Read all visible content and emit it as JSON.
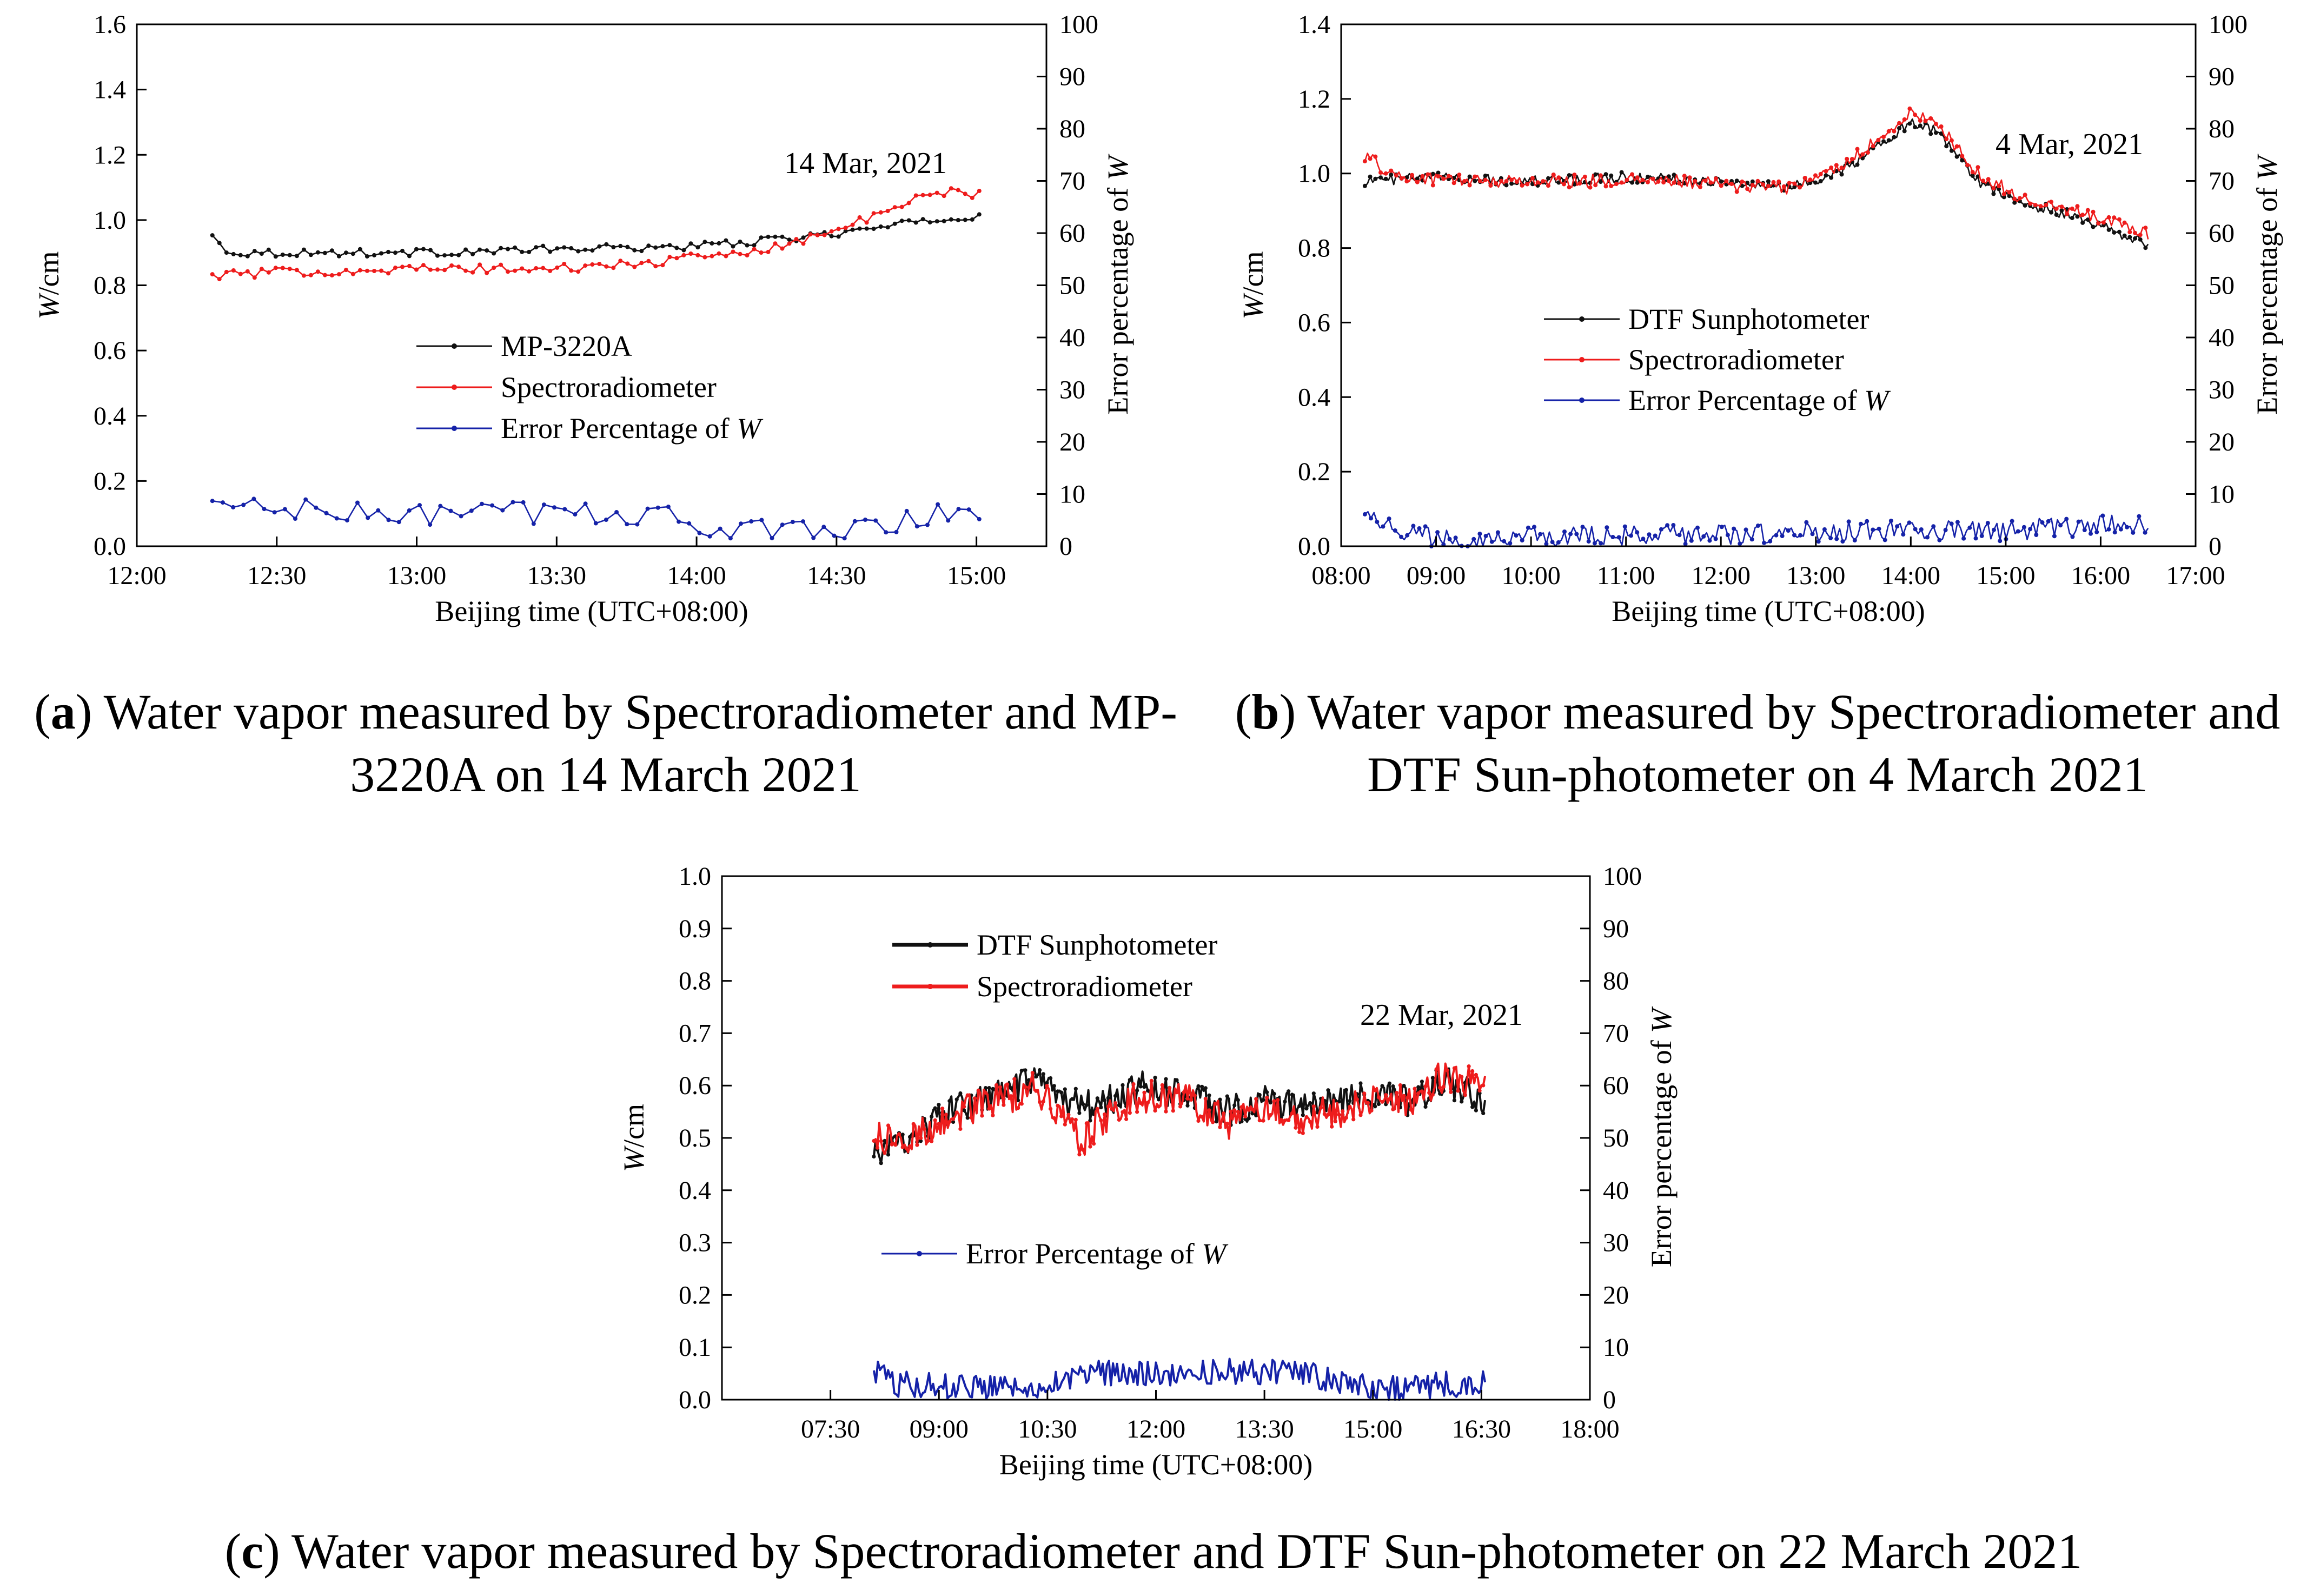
{
  "figure": {
    "captions": [
      {
        "letter": "a",
        "line1": ") Water vapor measured by Spectroradiometer and MP-",
        "line2": "3220A on 14 March 2021"
      },
      {
        "letter": "b",
        "line1": ") Water vapor measured by Spectroradiometer and",
        "line2": "DTF Sun-photometer on 4 March 2021"
      },
      {
        "letter": "c",
        "line1": ") Water vapor measured by Spectroradiometer and DTF Sun-photometer on 22 March 2021",
        "line2": ""
      }
    ]
  },
  "colors": {
    "black_series": "#111111",
    "red_series": "#ee1c1c",
    "blue_series": "#1522a8",
    "axis": "#000000"
  },
  "chart_data": [
    {
      "id": "a",
      "type": "line",
      "annotation": "14 Mar, 2021",
      "xlabel": "Beijing time (UTC+08:00)",
      "ylabel_left": "W/cm",
      "ylabel_left_italic": "W",
      "ylabel_left_rest": "/cm",
      "ylabel_right": "Error percentage of W",
      "ylabel_right_prefix": "Error percentage of ",
      "ylabel_right_italic": "W",
      "x_range_hours": [
        12.0,
        15.25
      ],
      "x_ticks": [
        {
          "v": 12.0,
          "label": "12:00"
        },
        {
          "v": 12.5,
          "label": "12:30"
        },
        {
          "v": 13.0,
          "label": "13:00"
        },
        {
          "v": 13.5,
          "label": "13:30"
        },
        {
          "v": 14.0,
          "label": "14:00"
        },
        {
          "v": 14.5,
          "label": "14:30"
        },
        {
          "v": 15.0,
          "label": "15:00"
        }
      ],
      "ylim_left": [
        0,
        1.6
      ],
      "y_left_ticks": [
        "0.0",
        "0.2",
        "0.4",
        "0.6",
        "0.8",
        "1.0",
        "1.2",
        "1.4",
        "1.6"
      ],
      "ylim_right": [
        0,
        100
      ],
      "y_right_ticks": [
        "0",
        "10",
        "20",
        "30",
        "40",
        "50",
        "60",
        "70",
        "80",
        "90",
        "100"
      ],
      "legend": [
        {
          "name": "MP-3220A",
          "color": "#111111"
        },
        {
          "name": "Spectroradiometer",
          "color": "#ee1c1c"
        },
        {
          "name": "Error Percentage of ",
          "italic": "W",
          "color": "#1522a8"
        }
      ],
      "series": [
        {
          "name": "MP-3220A",
          "axis": "left",
          "color": "#111111",
          "start": 12.27,
          "end": 15.01,
          "base": [
            [
              12.27,
              0.95
            ],
            [
              12.33,
              0.9
            ],
            [
              12.5,
              0.9
            ],
            [
              13.0,
              0.9
            ],
            [
              13.5,
              0.91
            ],
            [
              14.0,
              0.92
            ],
            [
              14.3,
              0.94
            ],
            [
              14.6,
              0.97
            ],
            [
              14.85,
              1.0
            ],
            [
              15.01,
              1.01
            ]
          ],
          "noise": 0.012,
          "n": 110,
          "markers": true
        },
        {
          "name": "Spectroradiometer",
          "axis": "left",
          "color": "#ee1c1c",
          "start": 12.27,
          "end": 15.01,
          "base": [
            [
              12.27,
              0.83
            ],
            [
              12.5,
              0.84
            ],
            [
              13.0,
              0.85
            ],
            [
              13.5,
              0.85
            ],
            [
              13.85,
              0.87
            ],
            [
              14.05,
              0.89
            ],
            [
              14.3,
              0.92
            ],
            [
              14.5,
              0.97
            ],
            [
              14.7,
              1.03
            ],
            [
              14.85,
              1.09
            ],
            [
              15.01,
              1.08
            ]
          ],
          "noise": 0.014,
          "n": 110,
          "markers": true
        },
        {
          "name": "Error Percentage of W",
          "axis": "right",
          "color": "#1522a8",
          "start": 12.27,
          "end": 15.01,
          "base": [
            [
              12.27,
              8
            ],
            [
              12.8,
              6
            ],
            [
              13.5,
              6.5
            ],
            [
              13.95,
              6
            ],
            [
              14.05,
              2.5
            ],
            [
              14.3,
              3
            ],
            [
              14.6,
              4
            ],
            [
              14.85,
              6
            ],
            [
              15.01,
              7
            ]
          ],
          "noise": 2.4,
          "n": 75,
          "markers": true
        }
      ]
    },
    {
      "id": "b",
      "type": "line",
      "annotation": "4 Mar, 2021",
      "xlabel": "Beijing time (UTC+08:00)",
      "ylabel_left": "W/cm",
      "ylabel_left_italic": "W",
      "ylabel_left_rest": "/cm",
      "ylabel_right": "Error percentage of W",
      "ylabel_right_prefix": "Error percentage of ",
      "ylabel_right_italic": "W",
      "x_range_hours": [
        8.0,
        17.0
      ],
      "x_ticks": [
        {
          "v": 8,
          "label": "08:00"
        },
        {
          "v": 9,
          "label": "09:00"
        },
        {
          "v": 10,
          "label": "10:00"
        },
        {
          "v": 11,
          "label": "11:00"
        },
        {
          "v": 12,
          "label": "12:00"
        },
        {
          "v": 13,
          "label": "13:00"
        },
        {
          "v": 14,
          "label": "14:00"
        },
        {
          "v": 15,
          "label": "15:00"
        },
        {
          "v": 16,
          "label": "16:00"
        },
        {
          "v": 17,
          "label": "17:00"
        }
      ],
      "ylim_left": [
        0,
        1.4
      ],
      "y_left_ticks": [
        "0.0",
        "0.2",
        "0.4",
        "0.6",
        "0.8",
        "1.0",
        "1.2",
        "1.4"
      ],
      "ylim_right": [
        0,
        100
      ],
      "y_right_ticks": [
        "0",
        "10",
        "20",
        "30",
        "40",
        "50",
        "60",
        "70",
        "80",
        "90",
        "100"
      ],
      "legend": [
        {
          "name": "DTF Sunphotometer",
          "color": "#111111"
        },
        {
          "name": "Spectroradiometer",
          "color": "#ee1c1c"
        },
        {
          "name": "Error Percentage of ",
          "italic": "W",
          "color": "#1522a8"
        }
      ],
      "series": [
        {
          "name": "DTF Sunphotometer",
          "axis": "left",
          "color": "#111111",
          "start": 8.25,
          "end": 16.5,
          "base": [
            [
              8.25,
              0.98
            ],
            [
              9.0,
              0.99
            ],
            [
              10.0,
              0.98
            ],
            [
              11.0,
              0.99
            ],
            [
              12.0,
              0.98
            ],
            [
              12.7,
              0.96
            ],
            [
              13.2,
              1.0
            ],
            [
              13.6,
              1.06
            ],
            [
              14.0,
              1.14
            ],
            [
              14.3,
              1.11
            ],
            [
              14.7,
              0.98
            ],
            [
              15.2,
              0.92
            ],
            [
              15.8,
              0.88
            ],
            [
              16.2,
              0.84
            ],
            [
              16.5,
              0.81
            ]
          ],
          "noise": 0.014,
          "n": 300,
          "markers": true
        },
        {
          "name": "Spectroradiometer",
          "axis": "left",
          "color": "#ee1c1c",
          "start": 8.25,
          "end": 16.5,
          "base": [
            [
              8.25,
              1.05
            ],
            [
              8.4,
              1.02
            ],
            [
              8.6,
              0.99
            ],
            [
              9.5,
              0.98
            ],
            [
              10.5,
              0.98
            ],
            [
              11.5,
              0.98
            ],
            [
              12.0,
              0.97
            ],
            [
              12.7,
              0.96
            ],
            [
              13.2,
              1.01
            ],
            [
              13.6,
              1.08
            ],
            [
              14.0,
              1.16
            ],
            [
              14.3,
              1.13
            ],
            [
              14.7,
              1.0
            ],
            [
              15.2,
              0.93
            ],
            [
              15.8,
              0.9
            ],
            [
              16.2,
              0.86
            ],
            [
              16.5,
              0.84
            ]
          ],
          "noise": 0.018,
          "n": 300,
          "markers": true
        },
        {
          "name": "Error Percentage of W",
          "axis": "right",
          "color": "#1522a8",
          "start": 8.25,
          "end": 16.5,
          "base": [
            [
              8.25,
              8
            ],
            [
              8.45,
              4
            ],
            [
              9.0,
              1.5
            ],
            [
              11.0,
              2
            ],
            [
              12.5,
              2.5
            ],
            [
              14.0,
              3
            ],
            [
              15.0,
              3
            ],
            [
              16.0,
              4
            ],
            [
              16.5,
              4
            ]
          ],
          "noise": 2.0,
          "n": 260,
          "markers": true
        }
      ]
    },
    {
      "id": "c",
      "type": "line",
      "annotation": "22 Mar, 2021",
      "xlabel": "Beijing time (UTC+08:00)",
      "ylabel_left": "W/cm",
      "ylabel_left_italic": "W",
      "ylabel_left_rest": "/cm",
      "ylabel_right": "Error percentage of W",
      "ylabel_right_prefix": "Error percentage of ",
      "ylabel_right_italic": "W",
      "x_range_hours": [
        6.0,
        18.0
      ],
      "x_ticks": [
        {
          "v": 7.5,
          "label": "07:30"
        },
        {
          "v": 9.0,
          "label": "09:00"
        },
        {
          "v": 10.5,
          "label": "10:30"
        },
        {
          "v": 12.0,
          "label": "12:00"
        },
        {
          "v": 13.5,
          "label": "13:30"
        },
        {
          "v": 15.0,
          "label": "15:00"
        },
        {
          "v": 16.5,
          "label": "16:30"
        },
        {
          "v": 18.0,
          "label": "18:00"
        }
      ],
      "ylim_left": [
        0,
        1.0
      ],
      "y_left_ticks": [
        "0.0",
        "0.1",
        "0.2",
        "0.3",
        "0.4",
        "0.5",
        "0.6",
        "0.7",
        "0.8",
        "0.9",
        "1.0"
      ],
      "ylim_right": [
        0,
        100
      ],
      "y_right_ticks": [
        "0",
        "10",
        "20",
        "30",
        "40",
        "50",
        "60",
        "70",
        "80",
        "90",
        "100"
      ],
      "legend": [
        {
          "name": "DTF Sunphotometer",
          "color": "#111111"
        },
        {
          "name": "Spectroradiometer",
          "color": "#ee1c1c"
        },
        {
          "name": "Error Percentage of ",
          "italic": "W",
          "color": "#1522a8"
        }
      ],
      "series": [
        {
          "name": "DTF Sunphotometer",
          "axis": "left",
          "color": "#111111",
          "start": 8.1,
          "end": 16.55,
          "base": [
            [
              8.1,
              0.47
            ],
            [
              8.5,
              0.49
            ],
            [
              9.0,
              0.54
            ],
            [
              9.5,
              0.57
            ],
            [
              10.0,
              0.59
            ],
            [
              10.3,
              0.61
            ],
            [
              10.7,
              0.57
            ],
            [
              11.2,
              0.56
            ],
            [
              11.8,
              0.6
            ],
            [
              12.5,
              0.58
            ],
            [
              13.0,
              0.55
            ],
            [
              13.5,
              0.57
            ],
            [
              14.0,
              0.56
            ],
            [
              14.5,
              0.57
            ],
            [
              15.0,
              0.58
            ],
            [
              15.5,
              0.57
            ],
            [
              16.0,
              0.61
            ],
            [
              16.55,
              0.57
            ]
          ],
          "noise": 0.03,
          "n": 340,
          "markers": true
        },
        {
          "name": "Spectroradiometer",
          "axis": "left",
          "color": "#ee1c1c",
          "start": 8.1,
          "end": 16.55,
          "base": [
            [
              8.1,
              0.5
            ],
            [
              8.5,
              0.49
            ],
            [
              9.0,
              0.53
            ],
            [
              9.5,
              0.56
            ],
            [
              10.0,
              0.58
            ],
            [
              10.3,
              0.6
            ],
            [
              10.7,
              0.54
            ],
            [
              11.0,
              0.49
            ],
            [
              11.2,
              0.53
            ],
            [
              11.8,
              0.58
            ],
            [
              12.5,
              0.57
            ],
            [
              13.0,
              0.53
            ],
            [
              13.5,
              0.55
            ],
            [
              14.0,
              0.54
            ],
            [
              14.5,
              0.55
            ],
            [
              15.0,
              0.57
            ],
            [
              15.5,
              0.57
            ],
            [
              16.0,
              0.62
            ],
            [
              16.55,
              0.6
            ]
          ],
          "noise": 0.032,
          "n": 340,
          "markers": true
        },
        {
          "name": "Error Percentage of W",
          "axis": "right",
          "color": "#1522a8",
          "start": 8.1,
          "end": 16.55,
          "base": [
            [
              8.1,
              6
            ],
            [
              8.4,
              3
            ],
            [
              9.5,
              2.5
            ],
            [
              10.5,
              3
            ],
            [
              11.2,
              5
            ],
            [
              12.0,
              5
            ],
            [
              13.0,
              5.5
            ],
            [
              14.0,
              5
            ],
            [
              14.7,
              3
            ],
            [
              15.5,
              2
            ],
            [
              16.0,
              3
            ],
            [
              16.55,
              3
            ]
          ],
          "noise": 2.5,
          "n": 300,
          "markers": false
        }
      ]
    }
  ]
}
